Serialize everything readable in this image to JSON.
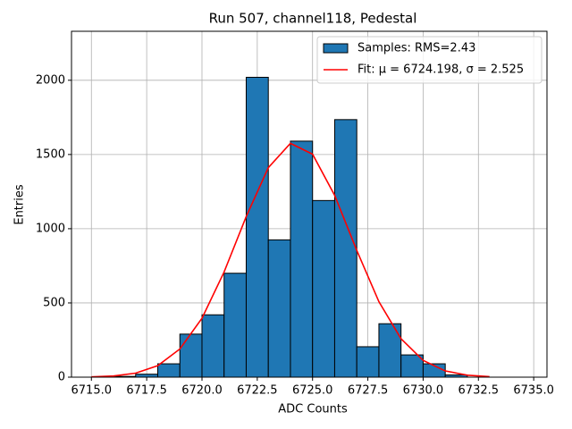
{
  "chart_data": {
    "type": "histogram",
    "title": "Run 507, channel118, Pedestal",
    "xlabel": "ADC Counts",
    "ylabel": "Entries",
    "xlim": [
      6714.1,
      6735.6
    ],
    "ylim": [
      0,
      2330
    ],
    "xticks": [
      {
        "value": 6715,
        "label": "6715.0"
      },
      {
        "value": 6717.5,
        "label": "6717.5"
      },
      {
        "value": 6720,
        "label": "6720.0"
      },
      {
        "value": 6722.5,
        "label": "6722.5"
      },
      {
        "value": 6725,
        "label": "6725.0"
      },
      {
        "value": 6727.5,
        "label": "6727.5"
      },
      {
        "value": 6730,
        "label": "6730.0"
      },
      {
        "value": 6732.5,
        "label": "6732.5"
      },
      {
        "value": 6735,
        "label": "6735.0"
      }
    ],
    "yticks": [
      0,
      500,
      1000,
      1500,
      2000
    ],
    "grid": true,
    "legend": "upper right",
    "series": [
      {
        "name": "Samples: RMS=2.43",
        "type": "histogram",
        "color": "#1f77b4",
        "bins": [
          6715,
          6716,
          6717,
          6718,
          6719,
          6720,
          6721,
          6722,
          6723,
          6724,
          6725,
          6726,
          6727,
          6728,
          6729,
          6730,
          6731,
          6732,
          6733,
          6734,
          6735
        ],
        "values": [
          0,
          5,
          20,
          90,
          290,
          420,
          700,
          2020,
          925,
          1590,
          1190,
          1735,
          205,
          360,
          150,
          90,
          15,
          0,
          0,
          0
        ]
      },
      {
        "name": "Fit: μ = 6724.198, σ = 2.525",
        "type": "line",
        "color": "#ff0000",
        "x": [
          6715,
          6716,
          6717,
          6718,
          6719,
          6720,
          6721,
          6722,
          6723,
          6724,
          6725,
          6726,
          6727,
          6728,
          6729,
          6730,
          6731,
          6732,
          6733
        ],
        "values": [
          2.1,
          8.1,
          27.2,
          77.6,
          189.8,
          396.7,
          708.5,
          1081.7,
          1411.7,
          1575.2,
          1502.2,
          1224.8,
          853.7,
          508.6,
          259.0,
          112.8,
          41.9,
          13.3,
          3.6
        ]
      }
    ]
  }
}
